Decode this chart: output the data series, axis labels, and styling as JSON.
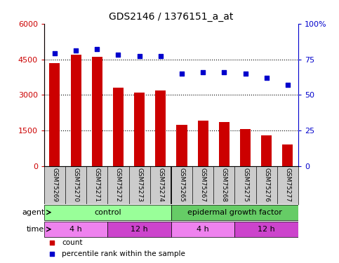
{
  "title": "GDS2146 / 1376151_a_at",
  "samples": [
    "GSM75269",
    "GSM75270",
    "GSM75271",
    "GSM75272",
    "GSM75273",
    "GSM75274",
    "GSM75265",
    "GSM75267",
    "GSM75268",
    "GSM75275",
    "GSM75276",
    "GSM75277"
  ],
  "counts": [
    4350,
    4700,
    4600,
    3300,
    3100,
    3200,
    1750,
    1900,
    1850,
    1550,
    1300,
    900
  ],
  "percentiles": [
    79,
    81,
    82,
    78,
    77,
    77,
    65,
    66,
    66,
    65,
    62,
    57
  ],
  "ylim_left": [
    0,
    6000
  ],
  "ylim_right": [
    0,
    100
  ],
  "yticks_left": [
    0,
    1500,
    3000,
    4500,
    6000
  ],
  "yticks_right": [
    0,
    25,
    50,
    75,
    100
  ],
  "left_axis_color": "#cc0000",
  "right_axis_color": "#0000cc",
  "bar_color": "#cc0000",
  "dot_color": "#0000cc",
  "agent_row": {
    "control_label": "control",
    "egf_label": "epidermal growth factor",
    "control_color": "#99ff99",
    "egf_color": "#66cc66",
    "control_span": [
      0,
      6
    ],
    "egf_span": [
      6,
      12
    ]
  },
  "time_row": {
    "spans": [
      {
        "label": "4 h",
        "start": 0,
        "end": 3,
        "color": "#ee82ee"
      },
      {
        "label": "12 h",
        "start": 3,
        "end": 6,
        "color": "#cc44cc"
      },
      {
        "label": "4 h",
        "start": 6,
        "end": 9,
        "color": "#ee82ee"
      },
      {
        "label": "12 h",
        "start": 9,
        "end": 12,
        "color": "#cc44cc"
      }
    ]
  },
  "legend_count_color": "#cc0000",
  "legend_dot_color": "#0000cc",
  "xlabel_agent": "agent",
  "xlabel_time": "time",
  "background_color": "#ffffff",
  "sample_bg_color": "#cccccc"
}
